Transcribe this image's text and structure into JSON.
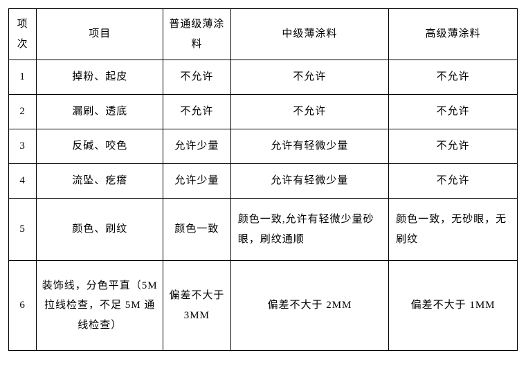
{
  "table": {
    "headers": {
      "index": "项次",
      "item": "项目",
      "normal": "普通级薄涂料",
      "mid": "中级薄涂料",
      "high": "高级薄涂料"
    },
    "rows": [
      {
        "index": "1",
        "item": "掉粉、起皮",
        "normal": "不允许",
        "mid": "不允许",
        "high": "不允许"
      },
      {
        "index": "2",
        "item": "漏刷、透底",
        "normal": "不允许",
        "mid": "不允许",
        "high": "不允许"
      },
      {
        "index": "3",
        "item": "反碱、咬色",
        "normal": "允许少量",
        "mid": "允许有轻微少量",
        "high": "不允许"
      },
      {
        "index": "4",
        "item": "流坠、疙瘩",
        "normal": "允许少量",
        "mid": "允许有轻微少量",
        "high": "不允许"
      },
      {
        "index": "5",
        "item": "颜色、刷纹",
        "normal": "颜色一致",
        "mid": "颜色一致,允许有轻微少量砂眼，刷纹通顺",
        "high": "颜色一致，无砂眼，无刷纹"
      },
      {
        "index": "6",
        "item": "装饰线，分色平直（5M 拉线检查，不足 5M 通线检查）",
        "normal": "偏差不大于 3MM",
        "mid": "偏差不大于 2MM",
        "high": "偏差不大于 1MM"
      }
    ]
  }
}
